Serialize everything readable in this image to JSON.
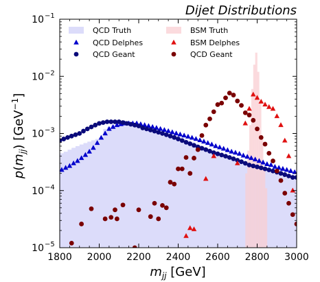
{
  "chart_data": {
    "type": "scatter",
    "title": "Dijet Distributions",
    "xlabel": "m_jj [GeV]",
    "ylabel": "p(m_jj) [GeV^-1]",
    "xlim": [
      1800,
      3000
    ],
    "ylim": [
      1e-05,
      0.1
    ],
    "yscale": "log",
    "x_ticks": [
      "1800",
      "2000",
      "2200",
      "2400",
      "2600",
      "2800",
      "3000"
    ],
    "y_ticks": [
      {
        "value": 1e-05,
        "base": "10",
        "exp": "−5"
      },
      {
        "value": 0.0001,
        "base": "10",
        "exp": "−4"
      },
      {
        "value": 0.001,
        "base": "10",
        "exp": "−3"
      },
      {
        "value": 0.01,
        "base": "10",
        "exp": "−2"
      },
      {
        "value": 0.1,
        "base": "10",
        "exp": "−1"
      }
    ],
    "legend_position": "top",
    "colors": {
      "qcd_truth": "#dcdcfa",
      "bsm_truth": "#f9cfd3",
      "qcd_delphes": "#0000cc",
      "qcd_geant": "#0a0a7a",
      "bsm_delphes": "#e01010",
      "bsm_geant": "#7a0000"
    },
    "series": [
      {
        "name": "QCD Truth",
        "kind": "hist",
        "bin_width": 20,
        "x": [
          1800,
          1820,
          1840,
          1860,
          1880,
          1900,
          1920,
          1940,
          1960,
          1980,
          2000,
          2020,
          2040,
          2060,
          2080,
          2100,
          2120,
          2140,
          2160,
          2180,
          2200,
          2220,
          2240,
          2260,
          2280,
          2300,
          2320,
          2340,
          2360,
          2380,
          2400,
          2420,
          2440,
          2460,
          2480,
          2500,
          2520,
          2540,
          2560,
          2580,
          2600,
          2620,
          2640,
          2660,
          2680,
          2700,
          2720,
          2740,
          2760,
          2780,
          2800,
          2820,
          2840,
          2860,
          2880,
          2900,
          2920,
          2940,
          2960,
          2980
        ],
        "values": [
          0.00045,
          0.00048,
          0.00052,
          0.00056,
          0.0006,
          0.00064,
          0.00068,
          0.00072,
          0.00076,
          0.0008,
          0.00085,
          0.0012,
          0.0013,
          0.0014,
          0.0014,
          0.0015,
          0.0015,
          0.0015,
          0.0015,
          0.0014,
          0.0014,
          0.0013,
          0.0013,
          0.0012,
          0.0012,
          0.0011,
          0.0011,
          0.001,
          0.00095,
          0.0009,
          0.00085,
          0.0008,
          0.00075,
          0.0007,
          0.00066,
          0.00062,
          0.00058,
          0.00054,
          0.0005,
          0.00047,
          0.00044,
          0.00041,
          0.00038,
          0.00036,
          0.00034,
          0.00032,
          0.0003,
          0.00028,
          0.00027,
          0.00025,
          0.00024,
          0.00023,
          0.00022,
          0.00021,
          0.0002,
          0.00019,
          0.00018,
          0.00017,
          0.00016,
          0.00016
        ]
      },
      {
        "name": "BSM Truth",
        "kind": "hist",
        "bin_width": 10,
        "x": [
          2740,
          2750,
          2760,
          2770,
          2780,
          2790,
          2800,
          2810,
          2820,
          2830,
          2840
        ],
        "values": [
          0.0002,
          0.0005,
          0.0014,
          0.006,
          0.016,
          0.026,
          0.012,
          0.0035,
          0.0008,
          0.00025,
          0.00011
        ]
      },
      {
        "name": "QCD Delphes",
        "kind": "marker",
        "marker": "triangle",
        "x": [
          1810,
          1830,
          1850,
          1870,
          1890,
          1910,
          1930,
          1950,
          1970,
          1990,
          2010,
          2030,
          2050,
          2070,
          2090,
          2110,
          2130,
          2150,
          2170,
          2190,
          2210,
          2230,
          2250,
          2270,
          2290,
          2310,
          2330,
          2350,
          2370,
          2390,
          2410,
          2430,
          2450,
          2470,
          2490,
          2510,
          2530,
          2550,
          2570,
          2590,
          2610,
          2630,
          2650,
          2670,
          2690,
          2710,
          2730,
          2750,
          2770,
          2790,
          2810,
          2830,
          2850,
          2870,
          2890,
          2910,
          2930,
          2950,
          2970,
          2990
        ],
        "values": [
          0.00023,
          0.00025,
          0.00027,
          0.0003,
          0.00033,
          0.00037,
          0.00042,
          0.00048,
          0.00056,
          0.00068,
          0.00084,
          0.001,
          0.0012,
          0.0013,
          0.0014,
          0.00145,
          0.0015,
          0.0015,
          0.0015,
          0.0015,
          0.00145,
          0.0014,
          0.00135,
          0.0013,
          0.00125,
          0.0012,
          0.00115,
          0.0011,
          0.00105,
          0.001,
          0.00096,
          0.00092,
          0.00088,
          0.00084,
          0.0008,
          0.00076,
          0.00072,
          0.00068,
          0.00064,
          0.0006,
          0.00057,
          0.00054,
          0.00051,
          0.00048,
          0.00046,
          0.00044,
          0.00041,
          0.00039,
          0.00037,
          0.00035,
          0.00033,
          0.00031,
          0.00029,
          0.00028,
          0.00026,
          0.00025,
          0.00024,
          0.00023,
          0.00022,
          0.00021
        ]
      },
      {
        "name": "QCD Geant",
        "kind": "marker",
        "marker": "circle",
        "x": [
          1800,
          1820,
          1840,
          1860,
          1880,
          1900,
          1920,
          1940,
          1960,
          1980,
          2000,
          2020,
          2040,
          2060,
          2080,
          2100,
          2120,
          2140,
          2160,
          2180,
          2200,
          2220,
          2240,
          2260,
          2280,
          2300,
          2320,
          2340,
          2360,
          2380,
          2400,
          2420,
          2440,
          2460,
          2480,
          2500,
          2520,
          2540,
          2560,
          2580,
          2600,
          2620,
          2640,
          2660,
          2680,
          2700,
          2720,
          2740,
          2760,
          2780,
          2800,
          2820,
          2840,
          2860,
          2880,
          2900,
          2920,
          2940,
          2960,
          2980,
          3000
        ],
        "values": [
          0.00075,
          0.0008,
          0.00085,
          0.0009,
          0.00095,
          0.001,
          0.0011,
          0.0012,
          0.0013,
          0.0014,
          0.0015,
          0.00155,
          0.0016,
          0.0016,
          0.0016,
          0.0016,
          0.00155,
          0.0015,
          0.00145,
          0.0014,
          0.00135,
          0.00125,
          0.0012,
          0.00115,
          0.0011,
          0.00105,
          0.001,
          0.00095,
          0.0009,
          0.00085,
          0.0008,
          0.00075,
          0.0007,
          0.00066,
          0.00062,
          0.00058,
          0.00055,
          0.00052,
          0.00049,
          0.00046,
          0.00044,
          0.00042,
          0.0004,
          0.00038,
          0.00036,
          0.00034,
          0.00032,
          0.0003,
          0.00028,
          0.00027,
          0.00026,
          0.00025,
          0.00024,
          0.00023,
          0.00022,
          0.00021,
          0.0002,
          0.00019,
          0.00018,
          0.00017,
          0.00017
        ]
      },
      {
        "name": "BSM Delphes",
        "kind": "marker",
        "marker": "triangle",
        "x": [
          2440,
          2460,
          2480,
          2540,
          2580,
          2700,
          2740,
          2760,
          2780,
          2800,
          2820,
          2840,
          2860,
          2880,
          2900,
          2920,
          2940,
          2960,
          2980
        ],
        "values": [
          1.6e-05,
          2.2e-05,
          2.1e-05,
          0.00016,
          0.0004,
          0.0003,
          0.0015,
          0.0027,
          0.0048,
          0.0042,
          0.0036,
          0.0032,
          0.0029,
          0.0027,
          0.002,
          0.0014,
          0.00075,
          0.0004,
          0.0001
        ]
      },
      {
        "name": "QCD Geant",
        "kind": "marker",
        "marker": "circle",
        "x": [
          1860,
          1910,
          1960,
          2030,
          2060,
          2080,
          2090,
          2120,
          2180,
          2200,
          2260,
          2280,
          2300,
          2320,
          2340,
          2360,
          2380,
          2400,
          2420,
          2440,
          2460,
          2480,
          2500,
          2520,
          2540,
          2560,
          2580,
          2600,
          2620,
          2640,
          2660,
          2680,
          2700,
          2720,
          2740,
          2760,
          2780,
          2800,
          2820,
          2840,
          2860,
          2880,
          2900,
          2920,
          2940,
          2960,
          2980,
          3000
        ],
        "values": [
          1.2e-05,
          2.6e-05,
          4.8e-05,
          3.2e-05,
          3.4e-05,
          4.6e-05,
          3.2e-05,
          5.6e-05,
          1e-05,
          4.6e-05,
          3.5e-05,
          6e-05,
          3.2e-05,
          5.5e-05,
          5e-05,
          0.00014,
          0.00013,
          0.00024,
          0.00024,
          0.00038,
          0.0002,
          0.00037,
          0.00052,
          0.00092,
          0.0014,
          0.0018,
          0.0024,
          0.0032,
          0.0034,
          0.0042,
          0.0051,
          0.0047,
          0.0037,
          0.0031,
          0.0023,
          0.0021,
          0.0017,
          0.0012,
          0.00085,
          0.00065,
          0.00045,
          0.00033,
          0.00022,
          0.00015,
          9e-05,
          6e-05,
          3.8e-05,
          2.6e-05
        ]
      }
    ]
  }
}
